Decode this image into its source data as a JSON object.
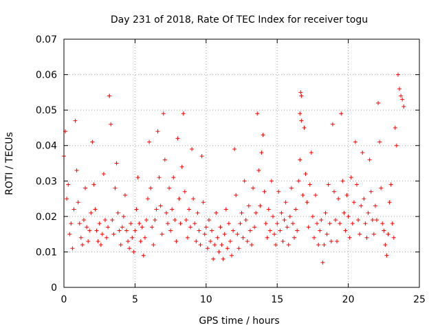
{
  "chart_data": {
    "type": "scatter",
    "title": "Day 231 of 2018, Rate Of TEC Index for receiver togu",
    "xlabel": "GPS time / hours",
    "ylabel": "ROTI / TECUs",
    "xlim": [
      0,
      25
    ],
    "ylim": [
      0,
      0.07
    ],
    "x_ticks": [
      "0",
      "5",
      "10",
      "15",
      "20",
      "25"
    ],
    "y_ticks": [
      "0",
      "0.01",
      "0.02",
      "0.03",
      "0.04",
      "0.05",
      "0.06",
      "0.07"
    ],
    "x_tick_values": [
      0,
      5,
      10,
      15,
      20,
      25
    ],
    "y_tick_values": [
      0,
      0.01,
      0.02,
      0.03,
      0.04,
      0.05,
      0.06,
      0.07
    ],
    "grid": true,
    "marker": "+",
    "marker_color": "#ff0000",
    "points_x": [
      0.0,
      0.1,
      0.2,
      0.3,
      0.4,
      0.5,
      0.6,
      0.7,
      0.8,
      0.9,
      1.0,
      1.1,
      1.2,
      1.3,
      1.4,
      1.5,
      1.6,
      1.7,
      1.8,
      1.9,
      2.0,
      2.1,
      2.2,
      2.3,
      2.4,
      2.5,
      2.6,
      2.7,
      2.8,
      2.9,
      3.0,
      3.1,
      3.2,
      3.3,
      3.4,
      3.5,
      3.6,
      3.7,
      3.8,
      3.9,
      4.0,
      4.1,
      4.2,
      4.3,
      4.4,
      4.5,
      4.6,
      4.7,
      4.8,
      4.9,
      5.0,
      5.1,
      5.2,
      5.3,
      5.4,
      5.5,
      5.6,
      5.7,
      5.8,
      5.9,
      6.0,
      6.1,
      6.2,
      6.3,
      6.4,
      6.5,
      6.6,
      6.7,
      6.8,
      6.9,
      7.0,
      7.1,
      7.2,
      7.3,
      7.4,
      7.5,
      7.6,
      7.7,
      7.8,
      7.9,
      8.0,
      8.1,
      8.2,
      8.3,
      8.4,
      8.5,
      8.6,
      8.7,
      8.8,
      8.9,
      9.0,
      9.1,
      9.2,
      9.3,
      9.4,
      9.5,
      9.6,
      9.7,
      9.8,
      9.9,
      10.0,
      10.1,
      10.2,
      10.3,
      10.4,
      10.5,
      10.6,
      10.7,
      10.8,
      10.9,
      11.0,
      11.1,
      11.2,
      11.3,
      11.4,
      11.5,
      11.6,
      11.7,
      11.8,
      11.9,
      12.0,
      12.1,
      12.2,
      12.3,
      12.4,
      12.5,
      12.6,
      12.7,
      12.8,
      12.9,
      13.0,
      13.1,
      13.2,
      13.3,
      13.4,
      13.5,
      13.6,
      13.7,
      13.8,
      13.9,
      14.0,
      14.1,
      14.2,
      14.3,
      14.4,
      14.5,
      14.6,
      14.7,
      14.8,
      14.9,
      15.0,
      15.1,
      15.2,
      15.3,
      15.4,
      15.5,
      15.6,
      15.7,
      15.8,
      15.9,
      16.0,
      16.1,
      16.2,
      16.3,
      16.4,
      16.5,
      16.6,
      16.7,
      16.8,
      16.9,
      17.0,
      17.1,
      17.2,
      17.3,
      17.4,
      17.5,
      17.6,
      17.7,
      17.8,
      17.9,
      18.0,
      18.1,
      18.2,
      18.3,
      18.4,
      18.5,
      18.6,
      18.7,
      18.8,
      18.9,
      19.0,
      19.1,
      19.2,
      19.3,
      19.4,
      19.5,
      19.6,
      19.7,
      19.8,
      19.9,
      20.0,
      20.1,
      20.2,
      20.3,
      20.4,
      20.5,
      20.6,
      20.7,
      20.8,
      20.9,
      21.0,
      21.1,
      21.2,
      21.3,
      21.4,
      21.5,
      21.6,
      21.7,
      21.8,
      21.9,
      22.0,
      22.1,
      22.2,
      22.3,
      22.4,
      22.5,
      22.6,
      22.7,
      22.8,
      22.9,
      23.0,
      23.1,
      23.2,
      23.3,
      23.4,
      23.5,
      23.6,
      23.7,
      23.8,
      23.9,
      16.6,
      16.65,
      16.7,
      3.2,
      3.25,
      3.3,
      7.05,
      13.6,
      22.6
    ],
    "points_y": [
      0.037,
      0.044,
      0.025,
      0.029,
      0.015,
      0.018,
      0.011,
      0.022,
      0.047,
      0.033,
      0.024,
      0.018,
      0.014,
      0.012,
      0.019,
      0.028,
      0.017,
      0.013,
      0.016,
      0.021,
      0.041,
      0.029,
      0.022,
      0.016,
      0.013,
      0.018,
      0.012,
      0.015,
      0.032,
      0.019,
      0.014,
      0.017,
      0.054,
      0.046,
      0.019,
      0.015,
      0.028,
      0.035,
      0.021,
      0.016,
      0.012,
      0.017,
      0.02,
      0.026,
      0.016,
      0.013,
      0.011,
      0.018,
      0.014,
      0.01,
      0.016,
      0.022,
      0.031,
      0.018,
      0.013,
      0.017,
      0.009,
      0.014,
      0.019,
      0.025,
      0.041,
      0.028,
      0.017,
      0.012,
      0.019,
      0.022,
      0.044,
      0.031,
      0.023,
      0.015,
      0.049,
      0.036,
      0.021,
      0.018,
      0.028,
      0.016,
      0.022,
      0.031,
      0.019,
      0.013,
      0.042,
      0.025,
      0.018,
      0.034,
      0.049,
      0.027,
      0.019,
      0.014,
      0.022,
      0.017,
      0.039,
      0.025,
      0.018,
      0.013,
      0.021,
      0.016,
      0.012,
      0.037,
      0.024,
      0.015,
      0.017,
      0.011,
      0.019,
      0.013,
      0.016,
      0.008,
      0.012,
      0.021,
      0.014,
      0.01,
      0.017,
      0.012,
      0.008,
      0.015,
      0.022,
      0.011,
      0.018,
      0.013,
      0.009,
      0.016,
      0.039,
      0.026,
      0.015,
      0.011,
      0.018,
      0.021,
      0.014,
      0.03,
      0.019,
      0.013,
      0.023,
      0.016,
      0.012,
      0.028,
      0.017,
      0.021,
      0.049,
      0.033,
      0.023,
      0.038,
      0.043,
      0.027,
      0.018,
      0.014,
      0.022,
      0.016,
      0.03,
      0.02,
      0.015,
      0.012,
      0.018,
      0.027,
      0.016,
      0.021,
      0.013,
      0.019,
      0.024,
      0.017,
      0.012,
      0.02,
      0.028,
      0.018,
      0.014,
      0.022,
      0.016,
      0.03,
      0.036,
      0.047,
      0.026,
      0.045,
      0.032,
      0.024,
      0.017,
      0.029,
      0.038,
      0.02,
      0.014,
      0.026,
      0.018,
      0.012,
      0.016,
      0.019,
      0.007,
      0.012,
      0.021,
      0.015,
      0.029,
      0.018,
      0.013,
      0.046,
      0.027,
      0.019,
      0.013,
      0.025,
      0.018,
      0.049,
      0.03,
      0.021,
      0.016,
      0.026,
      0.02,
      0.014,
      0.031,
      0.018,
      0.024,
      0.041,
      0.029,
      0.019,
      0.015,
      0.023,
      0.038,
      0.025,
      0.018,
      0.014,
      0.021,
      0.036,
      0.027,
      0.019,
      0.015,
      0.023,
      0.019,
      0.052,
      0.041,
      0.028,
      0.018,
      0.016,
      0.012,
      0.009,
      0.015,
      0.024,
      0.029,
      0.018,
      0.014,
      0.045,
      0.04,
      0.06,
      0.056,
      0.054,
      0.053,
      0.051,
      0.049,
      0.055,
      0.054,
      0.054
    ]
  }
}
